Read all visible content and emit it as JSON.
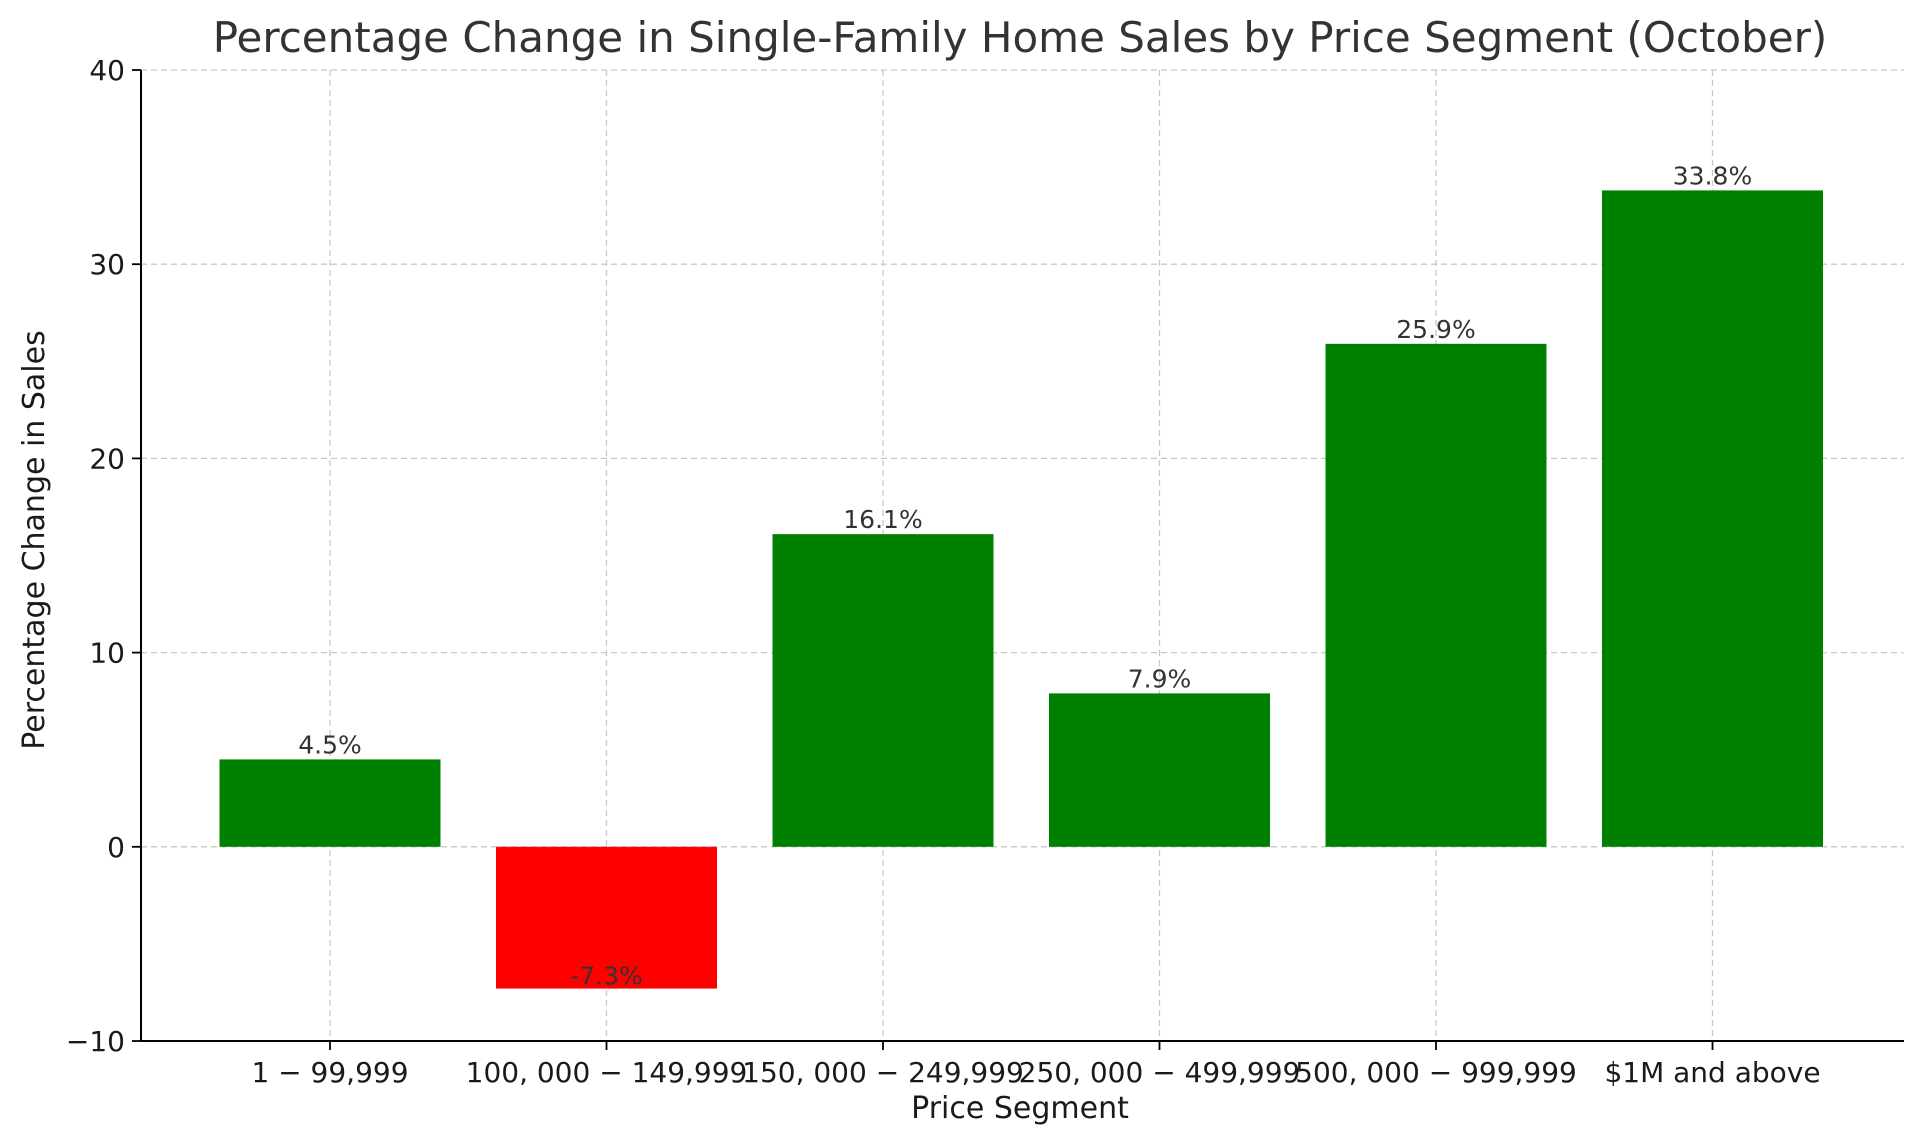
{
  "chart_data": {
    "type": "bar",
    "title": "Percentage Change in Single-Family Home Sales by Price Segment (October)",
    "xlabel": "Price Segment",
    "ylabel": "Percentage Change in Sales",
    "categories": [
      "1 − 99,999",
      "100, 000 − 149,999",
      "150, 000 − 249,999",
      "250, 000 − 499,999",
      "500, 000 − 999,999",
      "$1M and above"
    ],
    "values": [
      4.5,
      -7.3,
      16.1,
      7.9,
      25.9,
      33.8
    ],
    "value_labels": [
      "4.5%",
      "-7.3%",
      "16.1%",
      "7.9%",
      "25.9%",
      "33.8%"
    ],
    "ylim": [
      -10,
      40
    ],
    "yticks": [
      -10,
      0,
      10,
      20,
      30,
      40
    ],
    "ytick_labels": [
      "−10",
      "0",
      "10",
      "20",
      "30",
      "40"
    ],
    "grid": true,
    "colors": {
      "positive": "#008000",
      "negative": "#ff0000",
      "grid": "#c8c8c8",
      "axis": "#000000"
    }
  }
}
